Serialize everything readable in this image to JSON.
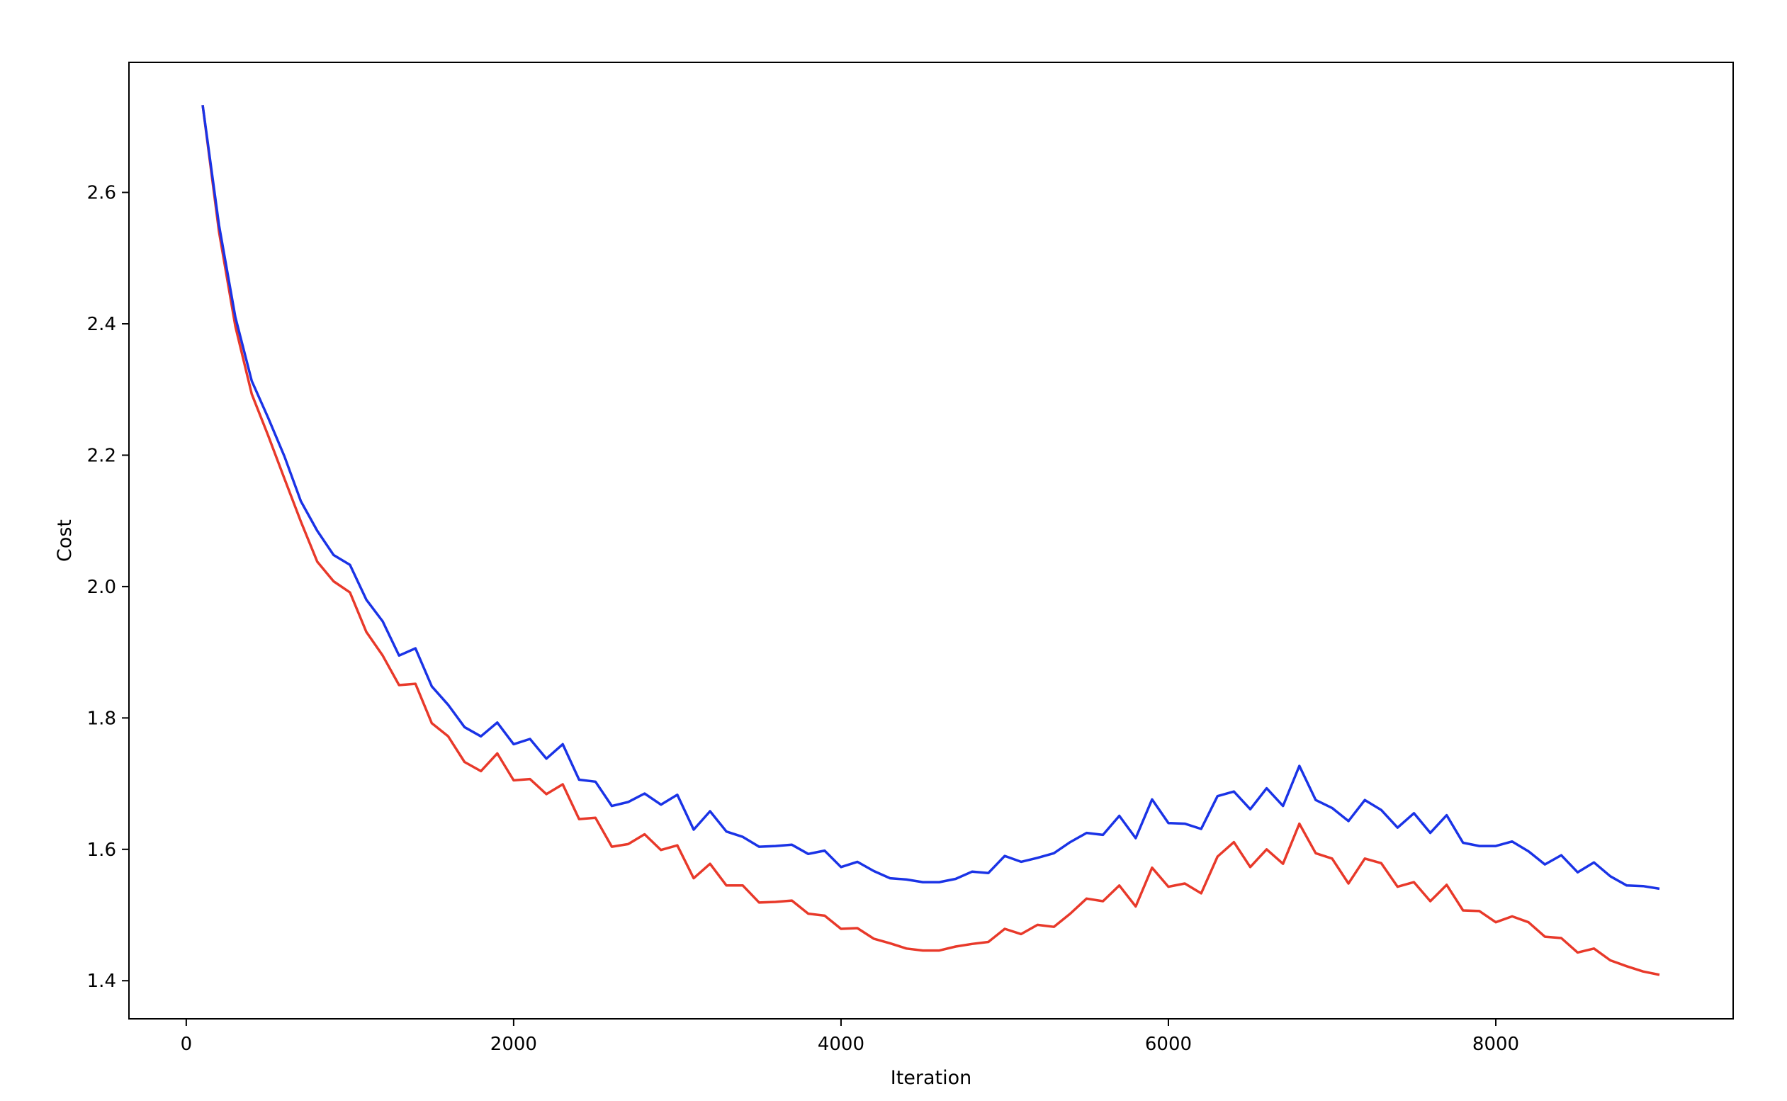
{
  "chart_data": {
    "type": "line",
    "title": "",
    "xlabel": "Iteration",
    "ylabel": "Cost",
    "xlim": [
      -350,
      9450
    ],
    "ylim": [
      1.342,
      2.798
    ],
    "xticks": [
      0,
      2000,
      4000,
      6000,
      8000
    ],
    "yticks": [
      1.4,
      1.6,
      1.8,
      2.0,
      2.2,
      2.4,
      2.6
    ],
    "xtick_labels": [
      "0",
      "2000",
      "4000",
      "6000",
      "8000"
    ],
    "ytick_labels": [
      "1.4",
      "1.6",
      "1.8",
      "2.0",
      "2.2",
      "2.4",
      "2.6"
    ],
    "grid": false,
    "legend": "none",
    "x": [
      100,
      200,
      300,
      400,
      500,
      600,
      700,
      800,
      900,
      1000,
      1100,
      1200,
      1300,
      1400,
      1500,
      1600,
      1700,
      1800,
      1900,
      2000,
      2100,
      2200,
      2300,
      2400,
      2500,
      2600,
      2700,
      2800,
      2900,
      3000,
      3100,
      3200,
      3300,
      3400,
      3500,
      3600,
      3700,
      3800,
      3900,
      4000,
      4100,
      4200,
      4300,
      4400,
      4500,
      4600,
      4700,
      4800,
      4900,
      5000,
      5100,
      5200,
      5300,
      5400,
      5500,
      5600,
      5700,
      5800,
      5900,
      6000,
      6100,
      6200,
      6300,
      6400,
      6500,
      6600,
      6700,
      6800,
      6900,
      7000,
      7100,
      7200,
      7300,
      7400,
      7500,
      7600,
      7700,
      7800,
      7900,
      8000,
      8100,
      8200,
      8300,
      8400,
      8500,
      8600,
      8700,
      8800,
      8900,
      9000
    ],
    "series": [
      {
        "color": "#1a33e6",
        "values": [
          2.733,
          2.55,
          2.41,
          2.313,
          2.257,
          2.198,
          2.13,
          2.085,
          2.048,
          2.033,
          1.98,
          1.947,
          1.895,
          1.906,
          1.848,
          1.82,
          1.786,
          1.772,
          1.793,
          1.76,
          1.768,
          1.738,
          1.76,
          1.706,
          1.703,
          1.666,
          1.672,
          1.685,
          1.668,
          1.683,
          1.63,
          1.658,
          1.627,
          1.619,
          1.604,
          1.605,
          1.607,
          1.593,
          1.598,
          1.573,
          1.581,
          1.567,
          1.556,
          1.554,
          1.55,
          1.55,
          1.555,
          1.566,
          1.564,
          1.59,
          1.581,
          1.587,
          1.594,
          1.611,
          1.625,
          1.622,
          1.651,
          1.617,
          1.676,
          1.64,
          1.639,
          1.631,
          1.681,
          1.688,
          1.661,
          1.693,
          1.666,
          1.727,
          1.675,
          1.663,
          1.643,
          1.675,
          1.66,
          1.633,
          1.655,
          1.625,
          1.652,
          1.61,
          1.605,
          1.605,
          1.612,
          1.597,
          1.577,
          1.591,
          1.565,
          1.58,
          1.559,
          1.545,
          1.544,
          1.54
        ]
      },
      {
        "color": "#e8392a",
        "values": [
          2.733,
          2.54,
          2.396,
          2.293,
          2.23,
          2.164,
          2.099,
          2.038,
          2.008,
          1.991,
          1.931,
          1.895,
          1.85,
          1.852,
          1.792,
          1.772,
          1.733,
          1.719,
          1.746,
          1.705,
          1.707,
          1.684,
          1.699,
          1.646,
          1.648,
          1.604,
          1.608,
          1.623,
          1.599,
          1.606,
          1.556,
          1.578,
          1.545,
          1.545,
          1.519,
          1.52,
          1.522,
          1.502,
          1.499,
          1.479,
          1.48,
          1.464,
          1.457,
          1.449,
          1.446,
          1.446,
          1.452,
          1.456,
          1.459,
          1.479,
          1.471,
          1.485,
          1.482,
          1.502,
          1.525,
          1.521,
          1.545,
          1.513,
          1.572,
          1.543,
          1.548,
          1.533,
          1.589,
          1.611,
          1.573,
          1.6,
          1.578,
          1.639,
          1.594,
          1.586,
          1.548,
          1.586,
          1.579,
          1.543,
          1.55,
          1.521,
          1.546,
          1.507,
          1.506,
          1.489,
          1.498,
          1.489,
          1.467,
          1.465,
          1.443,
          1.449,
          1.431,
          1.422,
          1.414,
          1.409
        ]
      }
    ]
  }
}
